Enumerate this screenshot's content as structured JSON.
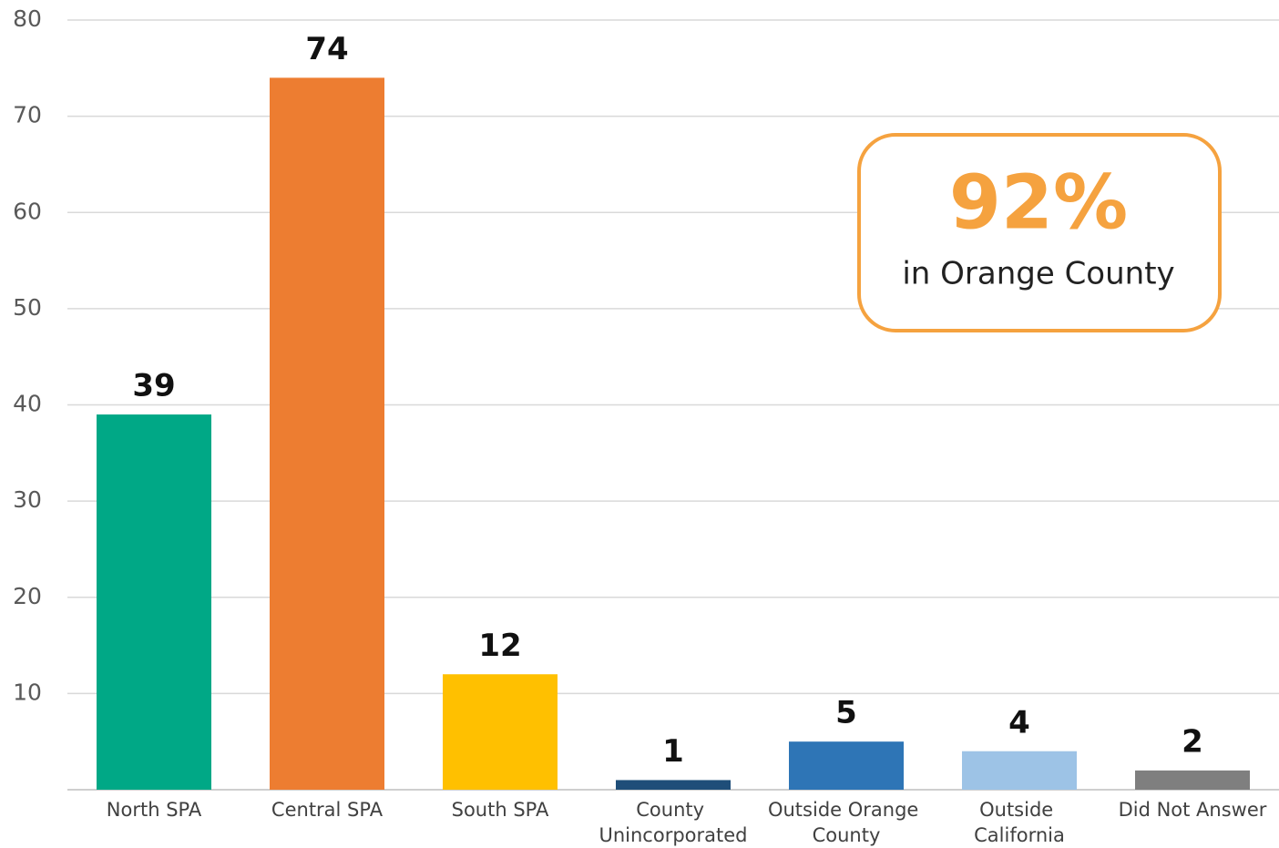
{
  "chart_data": {
    "type": "bar",
    "categories": [
      "North SPA",
      "Central SPA",
      "South SPA",
      "County Unincorporated",
      "Outside Orange County",
      "Outside California",
      "Did Not Answer"
    ],
    "values": [
      39,
      74,
      12,
      1,
      5,
      4,
      2
    ],
    "colors": [
      "#00a886",
      "#ed7d31",
      "#ffc000",
      "#1f4e79",
      "#2e75b6",
      "#9dc3e6",
      "#7f7f7f"
    ],
    "ylim": [
      0,
      80
    ],
    "yticks": [
      10,
      20,
      30,
      40,
      50,
      60,
      70,
      80
    ],
    "grid": true,
    "annotations": [
      "92%",
      "in Orange County"
    ]
  }
}
